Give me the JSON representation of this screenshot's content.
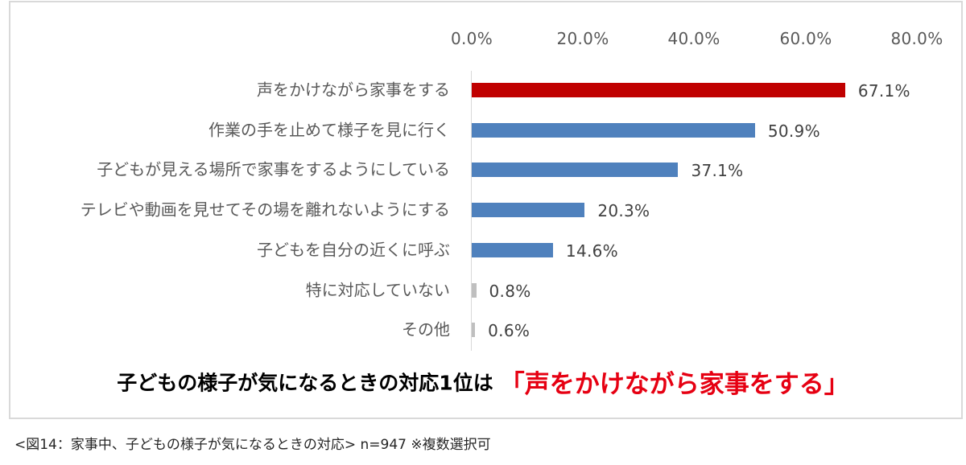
{
  "chart_data": {
    "type": "bar",
    "orientation": "horizontal",
    "title": "子どもの様子が気になるときの対応1位は「声をかけながら家事をする」",
    "xlabel": "",
    "ylabel": "",
    "xlim": [
      0,
      80
    ],
    "x_ticks": [
      "0.0%",
      "20.0%",
      "40.0%",
      "60.0%",
      "80.0%"
    ],
    "grid": false,
    "legend": null,
    "categories": [
      "声をかけながら家事をする",
      "作業の手を止めて様子を見に行く",
      "子どもが見える場所で家事をするようにしている",
      "テレビや動画を見せてその場を離れないようにする",
      "子どもを自分の近くに呼ぶ",
      "特に対応していない",
      "その他"
    ],
    "values": [
      67.1,
      50.9,
      37.1,
      20.3,
      14.6,
      0.8,
      0.6
    ],
    "value_labels": [
      "67.1%",
      "50.9%",
      "37.1%",
      "20.3%",
      "14.6%",
      "0.8%",
      "0.6%"
    ],
    "bar_colors": [
      "#c00000",
      "#4f81bd",
      "#4f81bd",
      "#4f81bd",
      "#4f81bd",
      "#bfbfbf",
      "#bfbfbf"
    ]
  },
  "axis": {
    "ticks": [
      "0.0%",
      "20.0%",
      "40.0%",
      "60.0%",
      "80.0%"
    ]
  },
  "rows": [
    {
      "label": "声をかけながら家事をする",
      "value": 67.1,
      "value_label": "67.1%",
      "color": "#c00000"
    },
    {
      "label": "作業の手を止めて様子を見に行く",
      "value": 50.9,
      "value_label": "50.9%",
      "color": "#4f81bd"
    },
    {
      "label": "子どもが見える場所で家事をするようにしている",
      "value": 37.1,
      "value_label": "37.1%",
      "color": "#4f81bd"
    },
    {
      "label": "テレビや動画を見せてその場を離れないようにする",
      "value": 20.3,
      "value_label": "20.3%",
      "color": "#4f81bd"
    },
    {
      "label": "子どもを自分の近くに呼ぶ",
      "value": 14.6,
      "value_label": "14.6%",
      "color": "#4f81bd"
    },
    {
      "label": "特に対応していない",
      "value": 0.8,
      "value_label": "0.8%",
      "color": "#bfbfbf"
    },
    {
      "label": "その他",
      "value": 0.6,
      "value_label": "0.6%",
      "color": "#bfbfbf"
    }
  ],
  "headline": {
    "main": "子どもの様子が気になるときの対応1位は",
    "accent": "「声をかけながら家事をする」",
    "accent_color": "#e60012"
  },
  "caption": "<図14：家事中、子どもの様子が気になるときの対応> n=947 ※複数選択可"
}
